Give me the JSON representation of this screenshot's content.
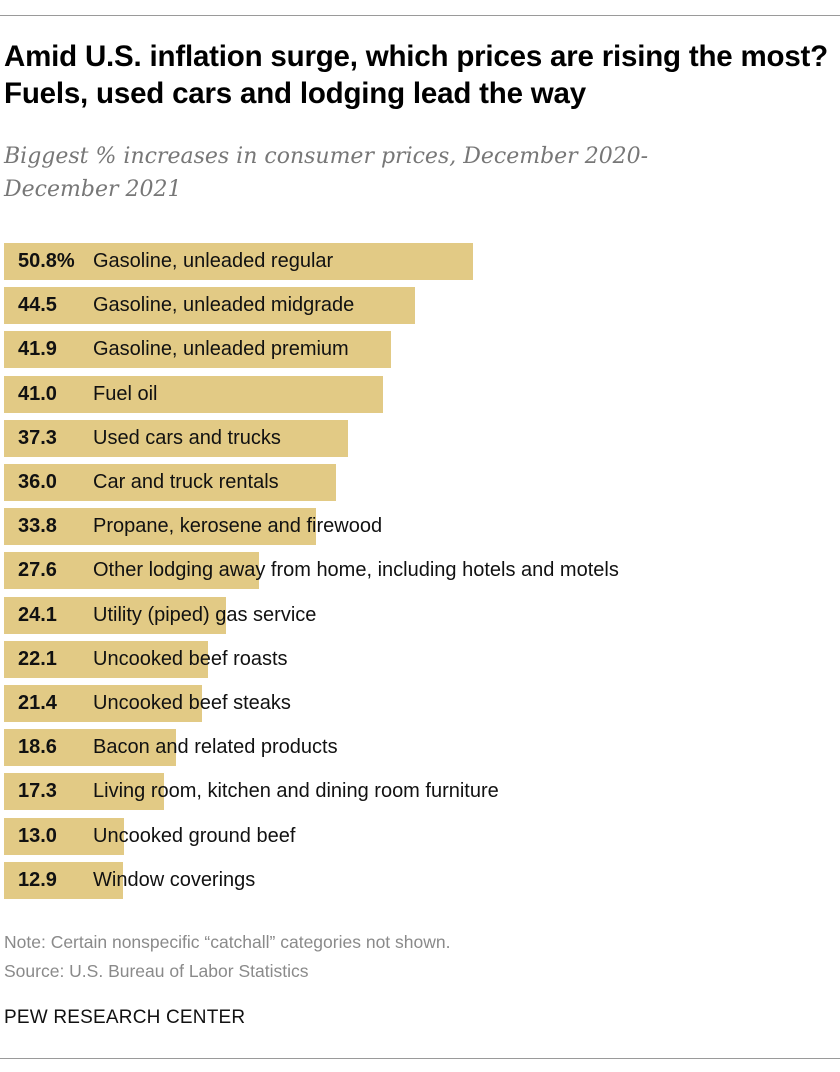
{
  "chart_data": {
    "type": "bar",
    "orientation": "horizontal",
    "title": "Amid U.S. inflation surge, which prices are rising the most? Fuels, used cars and lodging lead the way",
    "subtitle": "Biggest % increases in consumer prices, December 2020-December 2021",
    "categories": [
      "Gasoline, unleaded regular",
      "Gasoline, unleaded midgrade",
      "Gasoline, unleaded premium",
      "Fuel oil",
      "Used cars and trucks",
      "Car and truck rentals",
      "Propane, kerosene and firewood",
      "Other lodging away from home, including hotels and motels",
      "Utility (piped) gas service",
      "Uncooked beef roasts",
      "Uncooked beef steaks",
      "Bacon and related products",
      "Living room, kitchen and dining room furniture",
      "Uncooked ground beef",
      "Window coverings"
    ],
    "values": [
      50.8,
      44.5,
      41.9,
      41.0,
      37.3,
      36.0,
      33.8,
      27.6,
      24.1,
      22.1,
      21.4,
      18.6,
      17.3,
      13.0,
      12.9
    ],
    "value_labels": [
      "50.8%",
      "44.5",
      "41.9",
      "41.0",
      "37.3",
      "36.0",
      "33.8",
      "27.6",
      "24.1",
      "22.1",
      "21.4",
      "18.6",
      "17.3",
      "13.0",
      "12.9"
    ],
    "xlim": [
      0,
      50.8
    ],
    "grid": false,
    "bar_color": "#e2ca85"
  },
  "note": "Note: Certain nonspecific “catchall” categories not shown.",
  "source": "Source: U.S. Bureau of Labor Statistics",
  "brand": "PEW RESEARCH CENTER"
}
